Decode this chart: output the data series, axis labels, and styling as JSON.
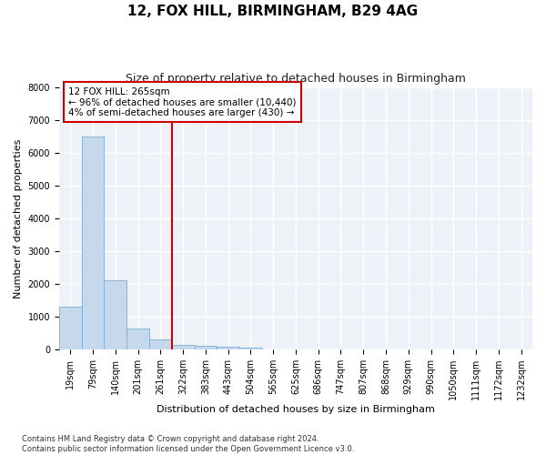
{
  "title": "12, FOX HILL, BIRMINGHAM, B29 4AG",
  "subtitle": "Size of property relative to detached houses in Birmingham",
  "xlabel": "Distribution of detached houses by size in Birmingham",
  "ylabel": "Number of detached properties",
  "categories": [
    "19sqm",
    "79sqm",
    "140sqm",
    "201sqm",
    "261sqm",
    "322sqm",
    "383sqm",
    "443sqm",
    "504sqm",
    "565sqm",
    "625sqm",
    "686sqm",
    "747sqm",
    "807sqm",
    "868sqm",
    "929sqm",
    "990sqm",
    "1050sqm",
    "1111sqm",
    "1172sqm",
    "1232sqm"
  ],
  "values": [
    1300,
    6500,
    2100,
    650,
    300,
    150,
    110,
    80,
    70,
    0,
    0,
    0,
    0,
    0,
    0,
    0,
    0,
    0,
    0,
    0,
    0
  ],
  "bar_color": "#c5d8ec",
  "bar_edge_color": "#7aafd4",
  "property_line_x": 4.5,
  "annotation_text": "12 FOX HILL: 265sqm\n← 96% of detached houses are smaller (10,440)\n4% of semi-detached houses are larger (430) →",
  "annotation_box_color": "#ffffff",
  "annotation_box_edge_color": "#cc0000",
  "line_color": "#cc0000",
  "ylim": [
    0,
    8000
  ],
  "yticks": [
    0,
    1000,
    2000,
    3000,
    4000,
    5000,
    6000,
    7000,
    8000
  ],
  "footer": "Contains HM Land Registry data © Crown copyright and database right 2024.\nContains public sector information licensed under the Open Government Licence v3.0.",
  "background_color": "#ffffff",
  "plot_background_color": "#eef2f8",
  "grid_color": "#ffffff",
  "title_fontsize": 11,
  "subtitle_fontsize": 9,
  "axis_label_fontsize": 8,
  "tick_fontsize": 7,
  "annotation_fontsize": 7.5
}
